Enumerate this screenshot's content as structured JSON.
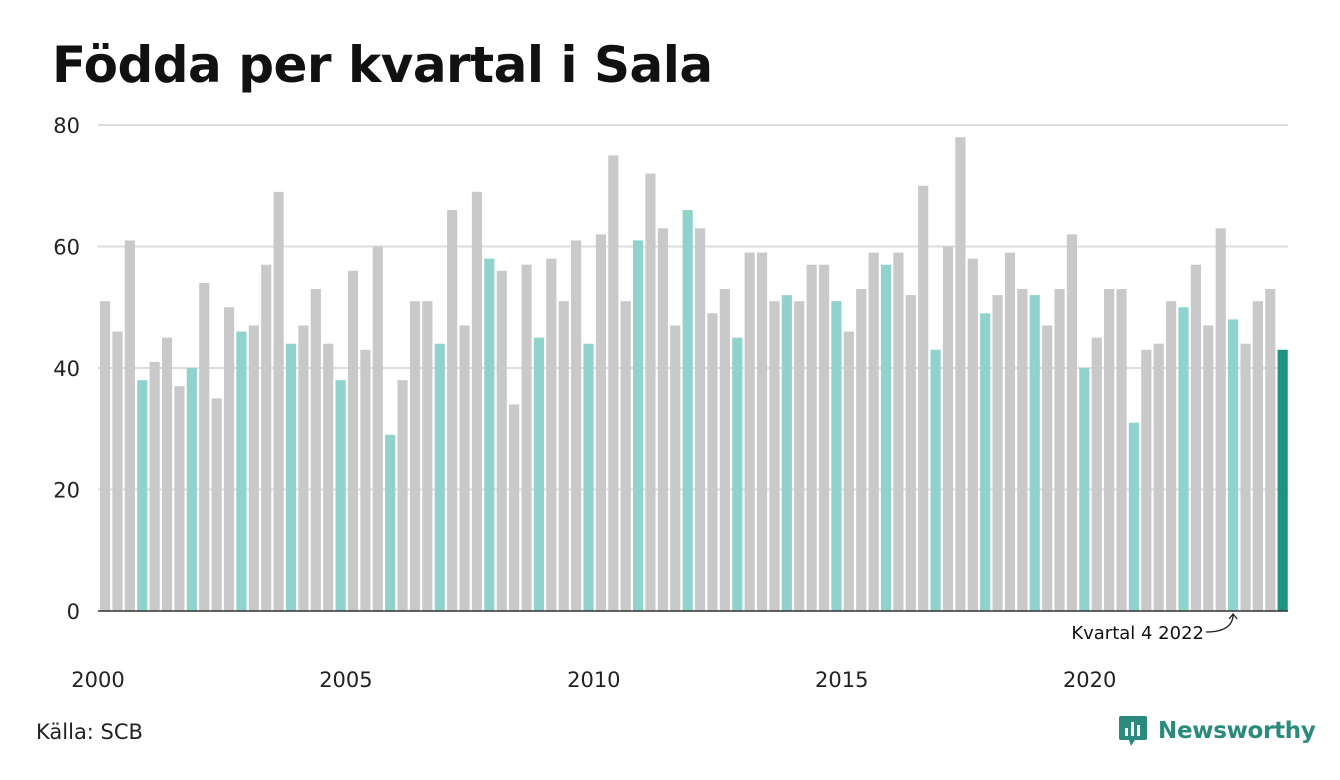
{
  "chart_data": {
    "type": "bar",
    "title": "Födda per kvartal i Sala",
    "xlabel": "",
    "ylabel": "",
    "ylim": [
      0,
      80
    ],
    "y_ticks": [
      0,
      20,
      40,
      60,
      80
    ],
    "x_tick_labels": [
      "2000",
      "2005",
      "2010",
      "2015",
      "2020"
    ],
    "grid": true,
    "colors": {
      "quarter4": "#8fd3cc",
      "other": "#c9c9c9",
      "latest": "#1e9384",
      "axis": "#333333",
      "grid": "#dddddd"
    },
    "annotation": "Kvartal 4 2022",
    "values": [
      51,
      46,
      61,
      38,
      41,
      45,
      37,
      40,
      54,
      35,
      50,
      46,
      47,
      57,
      69,
      44,
      47,
      53,
      44,
      38,
      56,
      43,
      60,
      29,
      38,
      51,
      51,
      44,
      66,
      47,
      69,
      58,
      56,
      34,
      57,
      45,
      58,
      51,
      61,
      44,
      62,
      75,
      51,
      61,
      72,
      63,
      47,
      66,
      63,
      49,
      53,
      45,
      59,
      59,
      51,
      52,
      51,
      57,
      57,
      51,
      46,
      53,
      59,
      57,
      59,
      52,
      70,
      43,
      60,
      78,
      58,
      49,
      52,
      59,
      53,
      52,
      47,
      53,
      62,
      40,
      45,
      53,
      53,
      31,
      43,
      44,
      51,
      50,
      57,
      47,
      63,
      48,
      44,
      51,
      53,
      43
    ]
  },
  "source": "Källa: SCB",
  "brand": {
    "name": "Newsworthy",
    "icon": "newsworthy-logo-icon",
    "color": "#2a8a7c"
  }
}
